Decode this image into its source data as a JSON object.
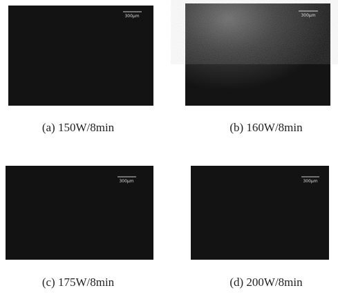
{
  "panels": [
    {
      "caption": "(a) 150W/8min",
      "scale_bar": "300μm"
    },
    {
      "caption": "(b) 160W/8min",
      "scale_bar": "300μm"
    },
    {
      "caption": "(c) 175W/8min",
      "scale_bar": "300μm"
    },
    {
      "caption": "(d) 200W/8min",
      "scale_bar": "300μm"
    }
  ]
}
